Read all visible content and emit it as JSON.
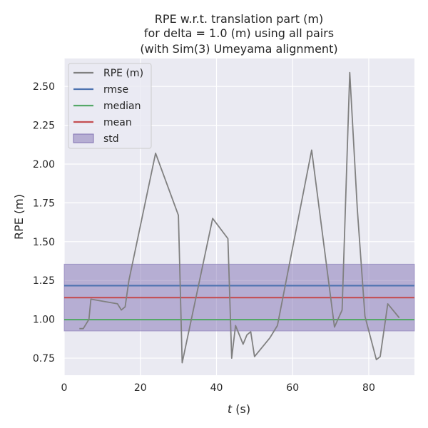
{
  "chart_data": {
    "type": "line",
    "title_lines": [
      "RPE w.r.t. translation part (m)",
      "for delta = 1.0 (m) using all pairs",
      "(with Sim(3) Umeyama alignment)"
    ],
    "xlabel_var": "t",
    "xlabel_unit": " (s)",
    "ylabel": "RPE (m)",
    "xlim": [
      0,
      92
    ],
    "ylim": [
      0.64,
      2.68
    ],
    "xticks": [
      0,
      20,
      40,
      60,
      80
    ],
    "yticks": [
      0.75,
      1.0,
      1.25,
      1.5,
      1.75,
      2.0,
      2.25,
      2.5
    ],
    "xtick_labels": [
      "0",
      "20",
      "40",
      "60",
      "80"
    ],
    "ytick_labels": [
      "0.75",
      "1.00",
      "1.25",
      "1.50",
      "1.75",
      "2.00",
      "2.25",
      "2.50"
    ],
    "grid": true,
    "legend_position": "upper-left",
    "series": [
      {
        "name": "RPE (m)",
        "color": "#808080",
        "x": [
          4,
          5,
          6.5,
          7,
          14,
          15,
          16,
          17,
          24,
          30,
          31,
          39,
          43,
          44,
          45,
          47,
          48,
          49,
          50,
          54,
          56,
          65,
          71,
          73,
          75,
          77,
          79,
          82,
          83,
          85,
          88
        ],
        "y": [
          0.94,
          0.94,
          1.0,
          1.13,
          1.1,
          1.06,
          1.08,
          1.25,
          2.07,
          1.67,
          0.72,
          1.65,
          1.52,
          0.75,
          0.96,
          0.84,
          0.9,
          0.92,
          0.76,
          0.88,
          0.96,
          2.09,
          0.95,
          1.06,
          2.59,
          1.71,
          1.02,
          0.74,
          0.76,
          1.1,
          1.01
        ]
      }
    ],
    "stats": [
      {
        "name": "rmse",
        "color": "#4c72b0",
        "value": 1.217
      },
      {
        "name": "median",
        "color": "#55a868",
        "value": 0.998
      },
      {
        "name": "mean",
        "color": "#c44e52",
        "value": 1.14
      }
    ],
    "std": {
      "name": "std",
      "color": "#8172b3",
      "low": 0.925,
      "high": 1.355
    },
    "background_color": "#eaeaf2"
  }
}
